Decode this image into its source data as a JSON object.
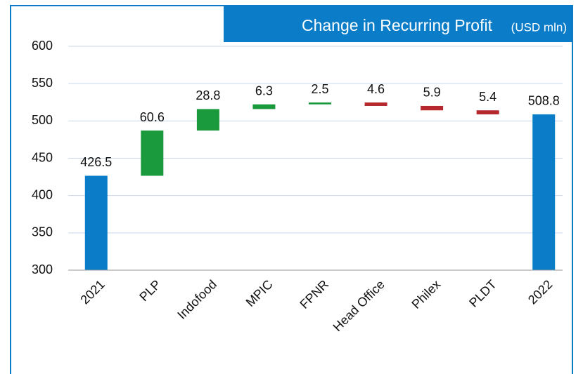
{
  "chart_data": {
    "type": "waterfall",
    "title": "Change in Recurring Profit",
    "unit": "(USD mln)",
    "categories": [
      "2021",
      "PLP",
      "Indofood",
      "MPIC",
      "FPNR",
      "Head Office",
      "Philex",
      "PLDT",
      "2022"
    ],
    "values": [
      426.5,
      60.6,
      28.8,
      6.3,
      2.5,
      -4.6,
      -5.9,
      -5.4,
      508.8
    ],
    "value_labels": [
      "426.5",
      "60.6",
      "28.8",
      "6.3",
      "2.5",
      "4.6",
      "5.9",
      "5.4",
      "508.8"
    ],
    "totals": [
      true,
      false,
      false,
      false,
      false,
      false,
      false,
      false,
      true
    ],
    "colors": {
      "total": "#0b7dc8",
      "increase": "#1a9a3c",
      "decrease": "#b5282e"
    },
    "ylim": [
      300,
      600
    ],
    "yticks": [
      300,
      350,
      400,
      450,
      500,
      550,
      600
    ],
    "grid": true
  }
}
